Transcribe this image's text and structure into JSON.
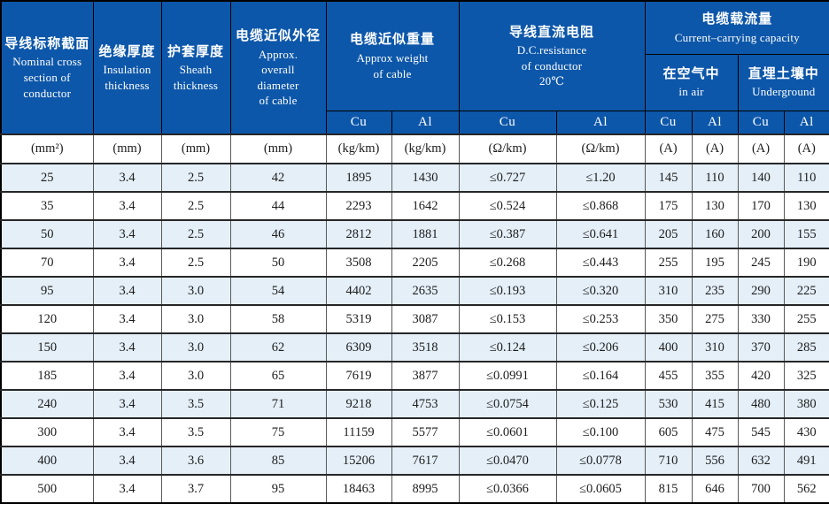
{
  "table": {
    "colors": {
      "header_bg": "#0d57aa",
      "header_text": "#ffffff",
      "stripe": "#e4eff8",
      "grid_v": "#5a5a5a",
      "grid_h": "#262626",
      "outer": "#000000",
      "text": "#1c1c1c"
    },
    "header": {
      "nominal_section": {
        "zh": "导线标称截面",
        "en": "Nominal cross\nsection of\nconductor"
      },
      "insulation": {
        "zh": "绝缘厚度",
        "en": "Insulation\nthickness"
      },
      "sheath": {
        "zh": "护套厚度",
        "en": "Sheath\nthickness"
      },
      "diameter": {
        "zh": "电缆近似外径",
        "en": "Approx.\noverall\ndiameter\nof cable"
      },
      "weight": {
        "zh": "电缆近似重量",
        "en": "Approx weight\nof cable"
      },
      "dc_resistance": {
        "zh": "导线直流电阻",
        "en": "D.C.resistance\nof conductor\n20℃"
      },
      "capacity": {
        "zh": "电缆载流量",
        "en": "Current–carrying capacity"
      },
      "in_air": {
        "zh": "在空气中",
        "en": "in air"
      },
      "underground": {
        "zh": "直埋土壤中",
        "en": "Underground"
      }
    },
    "metal_row": [
      "Cu",
      "Al",
      "Cu",
      "Al",
      "Cu",
      "Al",
      "Cu",
      "Al"
    ],
    "units_row": [
      "(mm²)",
      "(mm)",
      "(mm)",
      "(mm)",
      "(kg/km)",
      "(kg/km)",
      "(Ω/km)",
      "(Ω/km)",
      "(A)",
      "(A)",
      "(A)",
      "(A)"
    ],
    "rows": [
      [
        "25",
        "3.4",
        "2.5",
        "42",
        "1895",
        "1430",
        "≤0.727",
        "≤1.20",
        "145",
        "110",
        "140",
        "110"
      ],
      [
        "35",
        "3.4",
        "2.5",
        "44",
        "2293",
        "1642",
        "≤0.524",
        "≤0.868",
        "175",
        "130",
        "170",
        "130"
      ],
      [
        "50",
        "3.4",
        "2.5",
        "46",
        "2812",
        "1881",
        "≤0.387",
        "≤0.641",
        "205",
        "160",
        "200",
        "155"
      ],
      [
        "70",
        "3.4",
        "2.5",
        "50",
        "3508",
        "2205",
        "≤0.268",
        "≤0.443",
        "255",
        "195",
        "245",
        "190"
      ],
      [
        "95",
        "3.4",
        "3.0",
        "54",
        "4402",
        "2635",
        "≤0.193",
        "≤0.320",
        "310",
        "235",
        "290",
        "225"
      ],
      [
        "120",
        "3.4",
        "3.0",
        "58",
        "5319",
        "3087",
        "≤0.153",
        "≤0.253",
        "350",
        "275",
        "330",
        "255"
      ],
      [
        "150",
        "3.4",
        "3.0",
        "62",
        "6309",
        "3518",
        "≤0.124",
        "≤0.206",
        "400",
        "310",
        "370",
        "285"
      ],
      [
        "185",
        "3.4",
        "3.0",
        "65",
        "7619",
        "3877",
        "≤0.0991",
        "≤0.164",
        "455",
        "355",
        "420",
        "325"
      ],
      [
        "240",
        "3.4",
        "3.5",
        "71",
        "9218",
        "4753",
        "≤0.0754",
        "≤0.125",
        "530",
        "415",
        "480",
        "380"
      ],
      [
        "300",
        "3.4",
        "3.5",
        "75",
        "11159",
        "5577",
        "≤0.0601",
        "≤0.100",
        "605",
        "475",
        "545",
        "430"
      ],
      [
        "400",
        "3.4",
        "3.6",
        "85",
        "15206",
        "7617",
        "≤0.0470",
        "≤0.0778",
        "710",
        "556",
        "632",
        "491"
      ],
      [
        "500",
        "3.4",
        "3.7",
        "95",
        "18463",
        "8995",
        "≤0.0366",
        "≤0.0605",
        "815",
        "646",
        "700",
        "562"
      ]
    ]
  }
}
